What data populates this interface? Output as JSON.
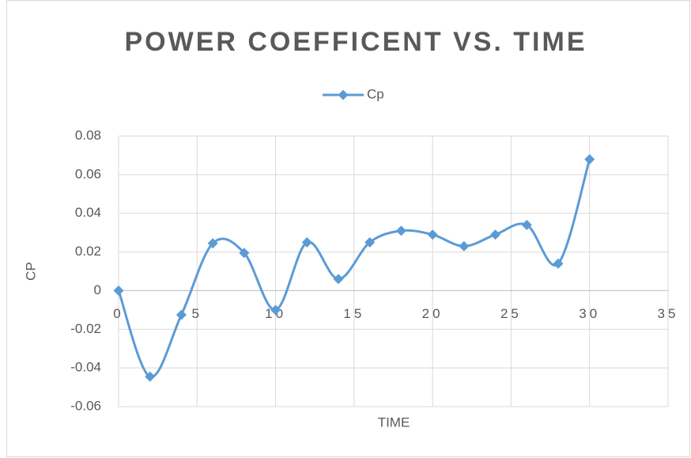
{
  "chart_data": {
    "type": "line",
    "title": "POWER COEFFICENT VS. TIME",
    "xlabel": "TIME",
    "ylabel": "CP",
    "x": [
      0,
      2,
      4,
      6,
      8,
      10,
      12,
      14,
      16,
      18,
      20,
      22,
      24,
      26,
      28,
      30
    ],
    "series": [
      {
        "name": "Cp",
        "color": "#5b9bd5",
        "values": [
          0,
          -0.0445,
          -0.0125,
          0.0245,
          0.0195,
          -0.01,
          0.025,
          0.006,
          0.025,
          0.031,
          0.029,
          0.023,
          0.029,
          0.034,
          0.014,
          0.068
        ]
      }
    ],
    "xlim": [
      0,
      35
    ],
    "xticks": [
      0,
      5,
      10,
      15,
      20,
      25,
      30,
      35
    ],
    "ylim": [
      -0.06,
      0.08
    ],
    "yticks": [
      -0.06,
      -0.04,
      -0.02,
      0,
      0.02,
      0.04,
      0.06,
      0.08
    ],
    "grid": true,
    "smooth": true,
    "legend": "top"
  }
}
